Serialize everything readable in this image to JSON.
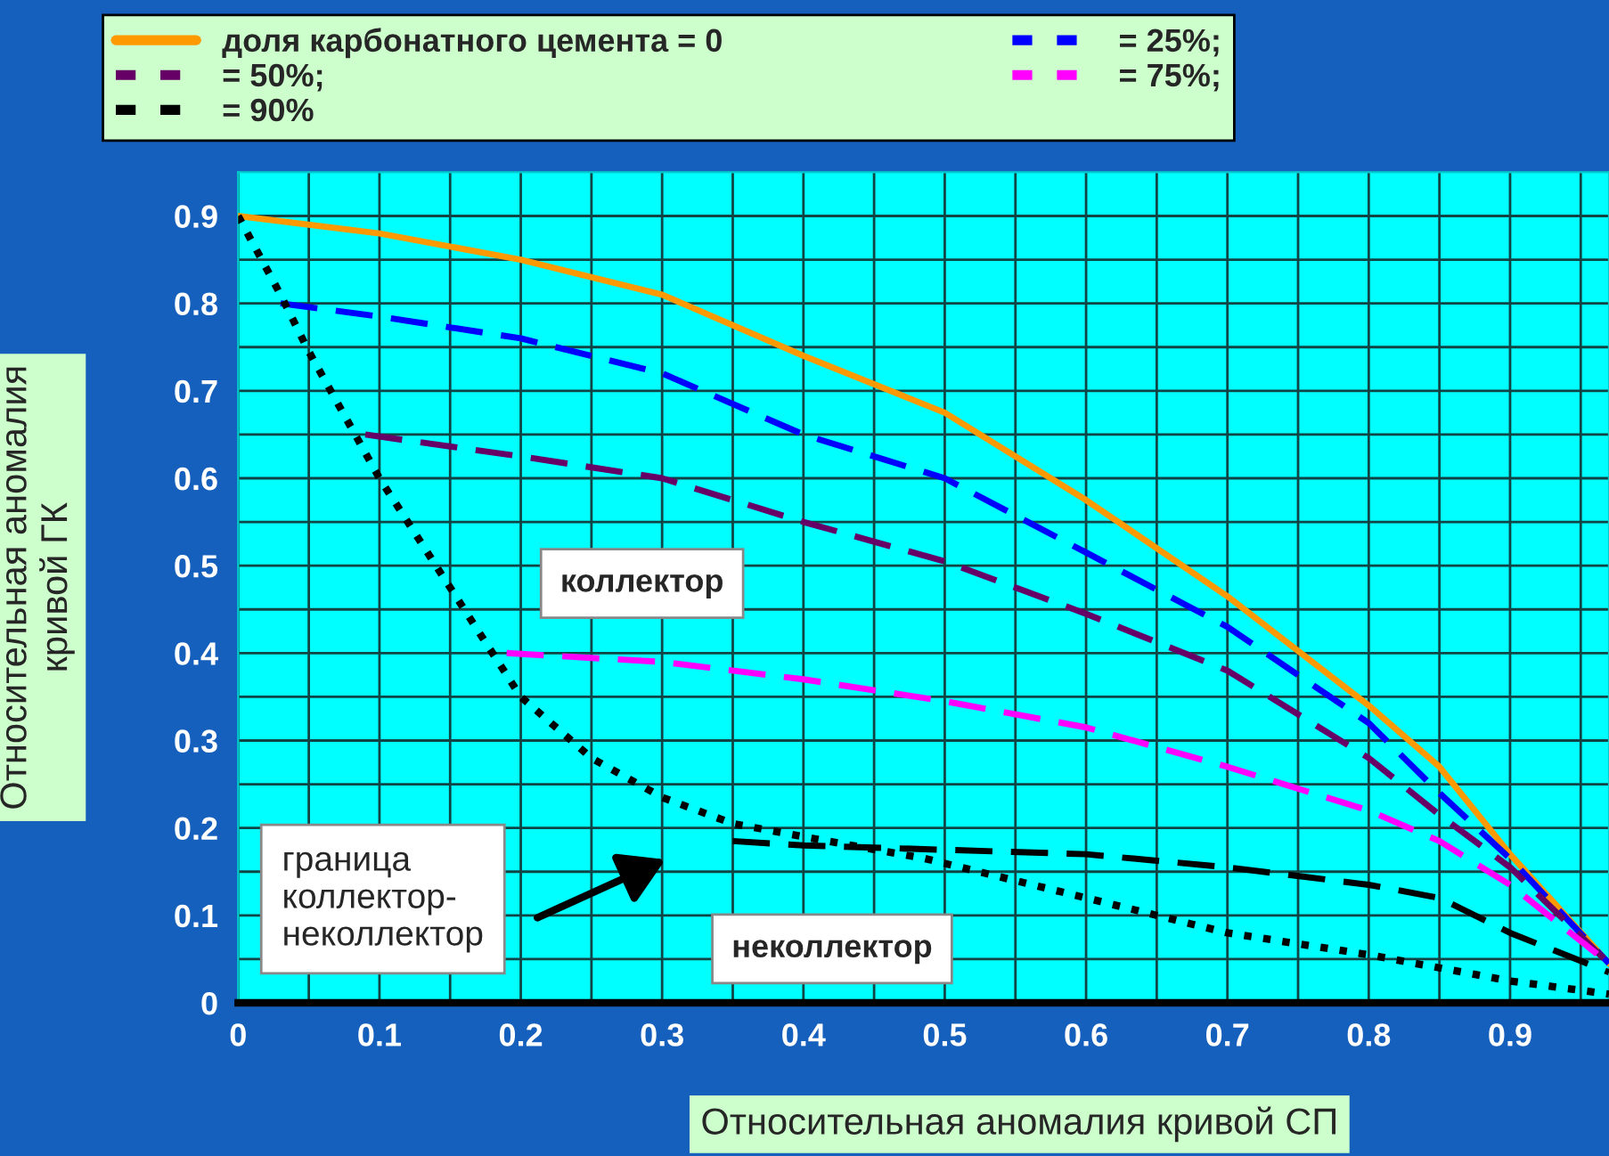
{
  "chart_data": {
    "type": "line",
    "xlabel": "Относительная аномалия кривой СП",
    "ylabel": "Относительная аномалия\nкривой ГК",
    "xlim": [
      0,
      0.97
    ],
    "ylim": [
      0,
      0.95
    ],
    "xticks": [
      0,
      {
        "value": 0.05,
        "label": null
      },
      0.1,
      {
        "value": 0.15,
        "label": null
      },
      0.2,
      {
        "value": 0.25,
        "label": null
      },
      0.3,
      {
        "value": 0.35,
        "label": null
      },
      0.4,
      {
        "value": 0.45,
        "label": null
      },
      0.5,
      {
        "value": 0.55,
        "label": null
      },
      0.6,
      {
        "value": 0.65,
        "label": null
      },
      0.7,
      {
        "value": 0.75,
        "label": null
      },
      0.8,
      {
        "value": 0.85,
        "label": null
      },
      0.9,
      {
        "value": 0.95,
        "label": null
      }
    ],
    "yticks": [
      0,
      {
        "value": 0.05,
        "label": null
      },
      0.1,
      {
        "value": 0.15,
        "label": null
      },
      0.2,
      {
        "value": 0.25,
        "label": null
      },
      0.3,
      {
        "value": 0.35,
        "label": null
      },
      0.4,
      {
        "value": 0.45,
        "label": null
      },
      0.5,
      {
        "value": 0.55,
        "label": null
      },
      0.6,
      {
        "value": 0.65,
        "label": null
      },
      0.7,
      {
        "value": 0.75,
        "label": null
      },
      0.8,
      {
        "value": 0.85,
        "label": null
      },
      0.9
    ],
    "grid": true,
    "legend": "top",
    "series": [
      {
        "name": "доля карбонатного цемента = 0",
        "color": "#ff9900",
        "line_style": "solid",
        "x": [
          0,
          0.1,
          0.2,
          0.3,
          0.4,
          0.5,
          0.6,
          0.7,
          0.8,
          0.85,
          0.9,
          0.97
        ],
        "values": [
          0.9,
          0.88,
          0.85,
          0.81,
          0.74,
          0.675,
          0.575,
          0.465,
          0.34,
          0.27,
          0.17,
          0.045
        ]
      },
      {
        "name": "= 25%;",
        "color": "#0000ff",
        "line_style": "dashed",
        "x": [
          0.03,
          0.1,
          0.2,
          0.3,
          0.4,
          0.5,
          0.6,
          0.7,
          0.8,
          0.85,
          0.9,
          0.97
        ],
        "values": [
          0.8,
          0.785,
          0.76,
          0.72,
          0.65,
          0.6,
          0.515,
          0.43,
          0.32,
          0.24,
          0.165,
          0.045
        ]
      },
      {
        "name": "= 50%;",
        "color": "#660066",
        "line_style": "dashed",
        "x": [
          0.09,
          0.2,
          0.3,
          0.4,
          0.5,
          0.6,
          0.7,
          0.8,
          0.85,
          0.9,
          0.97
        ],
        "values": [
          0.65,
          0.625,
          0.6,
          0.55,
          0.505,
          0.445,
          0.38,
          0.28,
          0.215,
          0.155,
          0.045
        ]
      },
      {
        "name": "= 75%;",
        "color": "#ff00ff",
        "line_style": "dashed",
        "x": [
          0.19,
          0.3,
          0.4,
          0.5,
          0.6,
          0.7,
          0.8,
          0.85,
          0.9,
          0.97
        ],
        "values": [
          0.4,
          0.39,
          0.37,
          0.345,
          0.315,
          0.27,
          0.22,
          0.185,
          0.135,
          0.045
        ]
      },
      {
        "name": "= 90%",
        "color": "#000000",
        "line_style": "dashed",
        "x": [
          0.35,
          0.4,
          0.5,
          0.6,
          0.7,
          0.8,
          0.85,
          0.9,
          0.97
        ],
        "values": [
          0.185,
          0.18,
          0.175,
          0.17,
          0.155,
          0.135,
          0.12,
          0.08,
          0.035
        ]
      },
      {
        "color": "#000000",
        "line_style": "dotted",
        "x": [
          0,
          0.03,
          0.05,
          0.1,
          0.15,
          0.2,
          0.25,
          0.3,
          0.35,
          0.4,
          0.486,
          0.6,
          0.7,
          0.8,
          0.9,
          0.97
        ],
        "values": [
          0.9,
          0.81,
          0.745,
          0.6,
          0.475,
          0.35,
          0.28,
          0.235,
          0.205,
          0.19,
          0.165,
          0.12,
          0.08,
          0.055,
          0.025,
          0.01
        ]
      }
    ],
    "annotations": [
      "коллектор",
      "неколлектор",
      "граница\nколлектор-\nнеколлектор"
    ]
  }
}
